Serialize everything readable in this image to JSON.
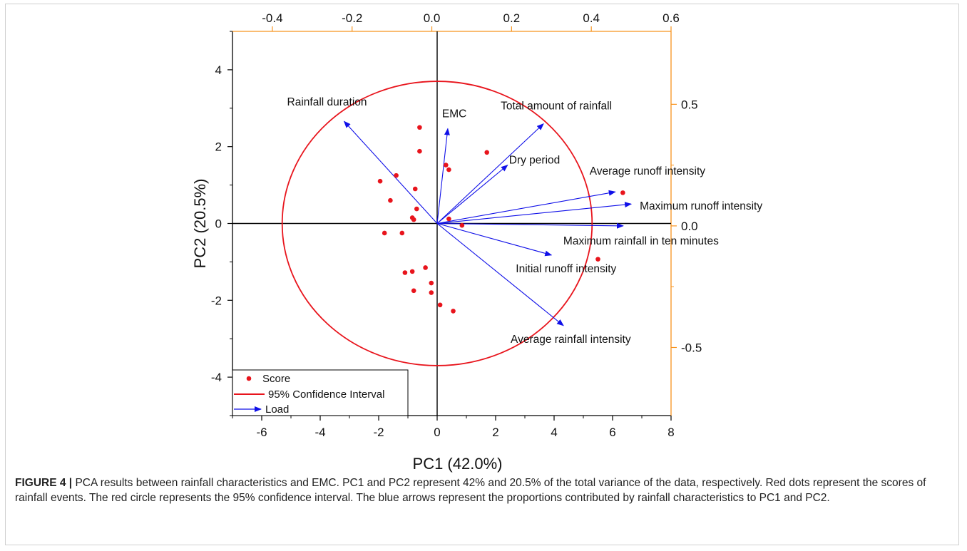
{
  "chart_data": {
    "type": "scatter",
    "xlabel": "PC1 (42.0%)",
    "ylabel": "PC2 (20.5%)",
    "xlim": [
      -7,
      8
    ],
    "ylim": [
      -5,
      5
    ],
    "x2lim": [
      -0.5,
      0.6
    ],
    "y2lim": [
      -0.78,
      0.8
    ],
    "x_ticks": [
      "-6",
      "-4",
      "-2",
      "0",
      "2",
      "4",
      "6",
      "8"
    ],
    "y_ticks": [
      "-4",
      "-2",
      "0",
      "2",
      "4"
    ],
    "x2_ticks": [
      "-0.4",
      "-0.2",
      "0.0",
      "0.2",
      "0.4",
      "0.6"
    ],
    "y2_ticks": [
      "0.5",
      "0.0",
      "-0.5"
    ],
    "secondary_axis_color": "#f7931e",
    "confidence_ellipse": {
      "center": [
        0,
        0
      ],
      "rx": 5.3,
      "ry": 3.7,
      "color": "#e8141c"
    },
    "scores": {
      "name": "Score",
      "color": "#e8141c",
      "points": [
        [
          -0.6,
          2.5
        ],
        [
          -0.6,
          1.88
        ],
        [
          1.7,
          1.85
        ],
        [
          0.3,
          1.52
        ],
        [
          0.4,
          1.4
        ],
        [
          -1.95,
          1.1
        ],
        [
          -1.4,
          1.25
        ],
        [
          -0.75,
          0.9
        ],
        [
          -1.6,
          0.6
        ],
        [
          -0.7,
          0.38
        ],
        [
          -0.85,
          0.15
        ],
        [
          -0.8,
          0.1
        ],
        [
          0.4,
          0.12
        ],
        [
          0.85,
          -0.05
        ],
        [
          -1.2,
          -0.25
        ],
        [
          -1.8,
          -0.25
        ],
        [
          -0.4,
          -1.15
        ],
        [
          -1.1,
          -1.28
        ],
        [
          -0.85,
          -1.25
        ],
        [
          -0.2,
          -1.55
        ],
        [
          -0.8,
          -1.75
        ],
        [
          -0.2,
          -1.8
        ],
        [
          0.1,
          -2.12
        ],
        [
          0.55,
          -2.28
        ],
        [
          6.35,
          0.8
        ],
        [
          5.5,
          -0.93
        ]
      ]
    },
    "loadings": {
      "name": "Load",
      "color": "#1010e8",
      "arrows": [
        {
          "label": "Rainfall duration",
          "pc1": -0.22,
          "pc2": 0.43
        },
        {
          "label": "EMC",
          "pc1": 0.04,
          "pc2": 0.4
        },
        {
          "label": "Total amount of rainfall",
          "pc1": 0.28,
          "pc2": 0.42
        },
        {
          "label": "Dry period",
          "pc1": 0.19,
          "pc2": 0.25
        },
        {
          "label": "Average runoff intensity",
          "pc1": 0.46,
          "pc2": 0.14
        },
        {
          "label": "Maximum runoff intensity",
          "pc1": 0.5,
          "pc2": 0.09
        },
        {
          "label": "Maximum rainfall in ten minutes",
          "pc1": 0.48,
          "pc2": 0.0
        },
        {
          "label": "Initial runoff intensity",
          "pc1": 0.3,
          "pc2": -0.12
        },
        {
          "label": "Average rainfall intensity",
          "pc1": 0.33,
          "pc2": -0.41
        }
      ]
    },
    "legend": {
      "placement": "bottom-left",
      "entries": [
        "Score",
        "95% Confidence Interval",
        "Load"
      ]
    }
  },
  "caption": {
    "figure_label": "FIGURE 4 |",
    "text": " PCA results between rainfall characteristics and EMC. PC1 and PC2 represent 42% and 20.5% of the total variance of the data, respectively. Red dots represent the scores of rainfall events. The red circle represents the 95% confidence interval. The blue arrows represent the proportions contributed by rainfall characteristics to PC1 and PC2."
  }
}
